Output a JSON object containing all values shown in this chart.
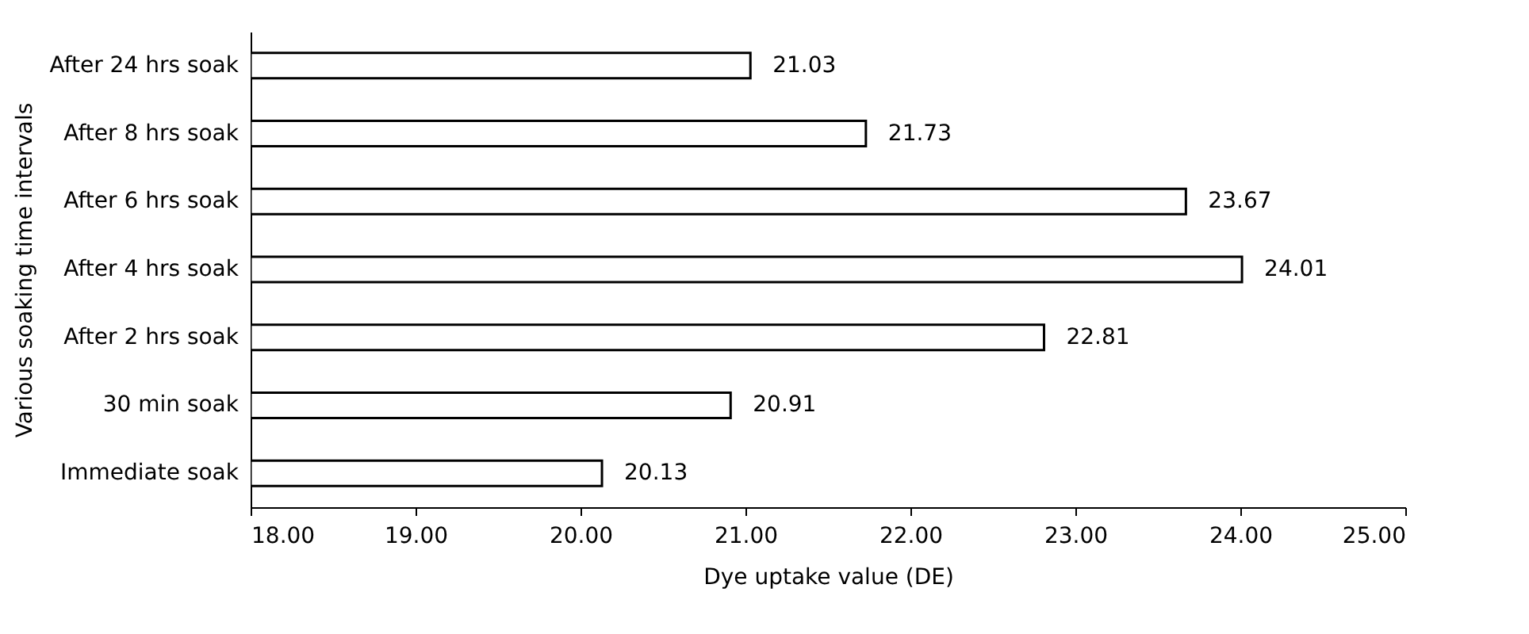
{
  "chart_data": {
    "type": "bar",
    "orientation": "horizontal",
    "xlabel": "Dye uptake value (DE)",
    "ylabel": "Various soaking time intervals",
    "categories": [
      "After 24 hrs soak",
      "After 8 hrs soak",
      "After 6 hrs soak",
      "After 4 hrs soak",
      "After 2 hrs soak",
      "30 min soak",
      "Immediate soak"
    ],
    "values": [
      21.03,
      21.73,
      23.67,
      24.01,
      22.81,
      20.91,
      20.13
    ],
    "color": "#ffffff",
    "xlim": [
      18,
      25
    ],
    "xticks": [
      {
        "value": 18,
        "label": "18.00"
      },
      {
        "value": 19,
        "label": "19.00"
      },
      {
        "value": 20,
        "label": "20.00"
      },
      {
        "value": 21,
        "label": "21.00"
      },
      {
        "value": 22,
        "label": "22.00"
      },
      {
        "value": 23,
        "label": "23.00"
      },
      {
        "value": 24,
        "label": "24.00"
      },
      {
        "value": 25,
        "label": "25.00"
      }
    ],
    "data_labels": true,
    "grid": false
  }
}
